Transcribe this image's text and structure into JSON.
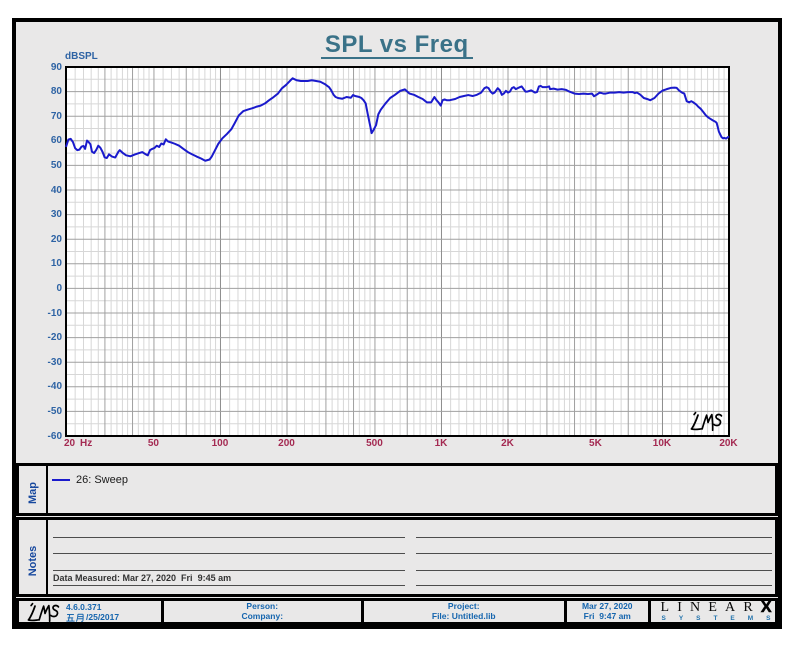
{
  "title": {
    "text": "SPL vs Freq",
    "color": "#3a7288"
  },
  "chart_data": {
    "type": "line",
    "title": "SPL vs Freq",
    "ylabel": "dBSPL",
    "xlabel": "",
    "x_unit": "Hz",
    "x_scale": "log",
    "x_range": [
      20,
      20000
    ],
    "y_range": [
      -60,
      90
    ],
    "grid": true,
    "y_ticks": [
      90,
      80,
      70,
      60,
      50,
      40,
      30,
      20,
      10,
      0,
      -10,
      -20,
      -30,
      -40,
      -50,
      -60
    ],
    "y_minor_ticks": [
      85,
      75,
      65,
      55,
      45,
      35,
      25,
      15,
      5,
      -5,
      -15,
      -25,
      -35,
      -45,
      -55
    ],
    "x_ticks": [
      {
        "value": 20,
        "label": "20"
      },
      {
        "value": 50,
        "label": "50"
      },
      {
        "value": 100,
        "label": "100"
      },
      {
        "value": 200,
        "label": "200"
      },
      {
        "value": 500,
        "label": "500"
      },
      {
        "value": 1000,
        "label": "1K"
      },
      {
        "value": 2000,
        "label": "2K"
      },
      {
        "value": 5000,
        "label": "5K"
      },
      {
        "value": 10000,
        "label": "10K"
      },
      {
        "value": 20000,
        "label": "20K"
      }
    ],
    "x_grid_major": [
      30,
      40,
      50,
      70,
      100,
      200,
      300,
      400,
      500,
      700,
      1000,
      2000,
      3000,
      4000,
      5000,
      7000,
      10000
    ],
    "x_grid_minor": [
      22,
      24,
      26,
      28,
      32,
      34,
      36,
      38,
      42.5,
      45,
      47.5,
      55,
      60,
      65,
      75,
      80,
      85,
      90,
      95,
      110,
      120,
      130,
      140,
      150,
      160,
      170,
      180,
      190,
      220,
      240,
      260,
      280,
      320,
      340,
      360,
      380,
      425,
      450,
      475,
      550,
      600,
      650,
      750,
      800,
      850,
      900,
      950,
      1100,
      1200,
      1300,
      1400,
      1500,
      1600,
      1700,
      1800,
      1900,
      2200,
      2400,
      2600,
      2800,
      3200,
      3400,
      3600,
      3800,
      4250,
      4500,
      4750,
      5500,
      6000,
      6500,
      7500,
      8000,
      8500,
      9000,
      9500,
      11000,
      12000,
      13000,
      14000,
      15000,
      16000,
      17000,
      18000,
      19000
    ],
    "series": [
      {
        "name": "26: Sweep",
        "color": "#1a1acc",
        "points": [
          [
            20,
            57.5
          ],
          [
            20.5,
            60.5
          ],
          [
            21,
            60.8
          ],
          [
            21.5,
            59.5
          ],
          [
            22,
            57
          ],
          [
            22.5,
            56.2
          ],
          [
            23,
            56.4
          ],
          [
            23.5,
            57.6
          ],
          [
            24,
            57.9
          ],
          [
            24.4,
            56.7
          ],
          [
            24.9,
            60.1
          ],
          [
            25.3,
            59.5
          ],
          [
            25.8,
            58.6
          ],
          [
            26.2,
            55.6
          ],
          [
            26.8,
            55
          ],
          [
            27.4,
            56.3
          ],
          [
            28,
            58
          ],
          [
            28.6,
            57.2
          ],
          [
            29.3,
            55.4
          ],
          [
            29.9,
            53.3
          ],
          [
            30.6,
            53
          ],
          [
            31.3,
            54.5
          ],
          [
            32.3,
            53.6
          ],
          [
            33.4,
            53.2
          ],
          [
            34.5,
            55.5
          ],
          [
            35,
            56.2
          ],
          [
            36.2,
            55
          ],
          [
            37.4,
            54.1
          ],
          [
            39.1,
            53.7
          ],
          [
            40.9,
            54.4
          ],
          [
            42.8,
            55
          ],
          [
            44.3,
            55.4
          ],
          [
            45.9,
            54.5
          ],
          [
            46.9,
            54.1
          ],
          [
            48,
            56.2
          ],
          [
            49.1,
            56.7
          ],
          [
            50.3,
            57.1
          ],
          [
            51.5,
            58
          ],
          [
            52.8,
            57.5
          ],
          [
            54,
            58.9
          ],
          [
            55.3,
            58.5
          ],
          [
            56.6,
            60.6
          ],
          [
            58,
            59.7
          ],
          [
            60,
            59.3
          ],
          [
            62.1,
            58.8
          ],
          [
            65,
            58
          ],
          [
            68,
            56.7
          ],
          [
            71.2,
            55.4
          ],
          [
            74.5,
            54.5
          ],
          [
            78,
            53.6
          ],
          [
            81.7,
            52.8
          ],
          [
            85.3,
            51.9
          ],
          [
            89.3,
            52.4
          ],
          [
            91.3,
            53.6
          ],
          [
            94.5,
            56.2
          ],
          [
            97.8,
            58.8
          ],
          [
            102,
            61
          ],
          [
            107,
            62.8
          ],
          [
            112,
            64.7
          ],
          [
            116,
            67.2
          ],
          [
            121,
            70.3
          ],
          [
            127,
            72.1
          ],
          [
            133,
            72.7
          ],
          [
            139,
            73.2
          ],
          [
            146,
            73.9
          ],
          [
            152,
            74.3
          ],
          [
            159,
            75.2
          ],
          [
            166,
            76.5
          ],
          [
            174,
            77.8
          ],
          [
            182,
            79.2
          ],
          [
            190,
            81.4
          ],
          [
            198,
            82.7
          ],
          [
            207,
            84.5
          ],
          [
            212,
            85.4
          ],
          [
            221,
            84.6
          ],
          [
            231,
            84.3
          ],
          [
            248,
            84.3
          ],
          [
            259,
            84.6
          ],
          [
            271,
            84.3
          ],
          [
            283,
            84
          ],
          [
            296,
            83.1
          ],
          [
            310,
            81.8
          ],
          [
            317,
            80.5
          ],
          [
            325,
            78.7
          ],
          [
            332,
            77.8
          ],
          [
            340,
            77.4
          ],
          [
            356,
            77.1
          ],
          [
            372,
            77.8
          ],
          [
            389,
            77.5
          ],
          [
            398,
            78.6
          ],
          [
            407,
            78.2
          ],
          [
            425,
            77.8
          ],
          [
            434,
            77.4
          ],
          [
            444,
            76.5
          ],
          [
            454,
            75.2
          ],
          [
            464,
            70.8
          ],
          [
            475,
            66.4
          ],
          [
            483,
            63.1
          ],
          [
            494,
            64.6
          ],
          [
            506,
            66.4
          ],
          [
            518,
            70.8
          ],
          [
            531,
            72.6
          ],
          [
            558,
            75.2
          ],
          [
            586,
            77.4
          ],
          [
            616,
            78.7
          ],
          [
            651,
            80.3
          ],
          [
            683,
            80.9
          ],
          [
            717,
            79.2
          ],
          [
            751,
            78.7
          ],
          [
            786,
            77.8
          ],
          [
            822,
            77
          ],
          [
            860,
            75.6
          ],
          [
            898,
            75.6
          ],
          [
            929,
            77.8
          ],
          [
            950,
            76.5
          ],
          [
            970,
            75.6
          ],
          [
            992,
            74.3
          ],
          [
            1012,
            76.5
          ],
          [
            1033,
            76.8
          ],
          [
            1055,
            76.5
          ],
          [
            1090,
            76.5
          ],
          [
            1153,
            77
          ],
          [
            1208,
            77.8
          ],
          [
            1264,
            78.2
          ],
          [
            1322,
            78.6
          ],
          [
            1383,
            78.2
          ],
          [
            1447,
            78.7
          ],
          [
            1512,
            79.6
          ],
          [
            1564,
            81.4
          ],
          [
            1599,
            81.8
          ],
          [
            1633,
            81.4
          ],
          [
            1668,
            80
          ],
          [
            1704,
            79.2
          ],
          [
            1740,
            79.6
          ],
          [
            1797,
            81.4
          ],
          [
            1838,
            80.5
          ],
          [
            1876,
            78.7
          ],
          [
            1916,
            79.2
          ],
          [
            1957,
            80.3
          ],
          [
            2000,
            79.6
          ],
          [
            2040,
            80
          ],
          [
            2083,
            81.4
          ],
          [
            2126,
            81.8
          ],
          [
            2170,
            81
          ],
          [
            2215,
            81.4
          ],
          [
            2261,
            81.8
          ],
          [
            2306,
            82.1
          ],
          [
            2353,
            81
          ],
          [
            2400,
            80
          ],
          [
            2447,
            80
          ],
          [
            2548,
            80.5
          ],
          [
            2652,
            79.6
          ],
          [
            2705,
            79.8
          ],
          [
            2760,
            82.1
          ],
          [
            2813,
            82.3
          ],
          [
            2870,
            81.8
          ],
          [
            2982,
            81.8
          ],
          [
            3070,
            82.1
          ],
          [
            3100,
            81
          ],
          [
            3220,
            81.2
          ],
          [
            3350,
            80.8
          ],
          [
            3500,
            81
          ],
          [
            3660,
            80.7
          ],
          [
            3790,
            80
          ],
          [
            4000,
            79.2
          ],
          [
            4190,
            79
          ],
          [
            4390,
            79.2
          ],
          [
            4600,
            79
          ],
          [
            4800,
            79.2
          ],
          [
            4900,
            78.1
          ],
          [
            5030,
            78.7
          ],
          [
            5200,
            79.6
          ],
          [
            5400,
            79.2
          ],
          [
            5540,
            79.2
          ],
          [
            5800,
            79.6
          ],
          [
            6080,
            79.6
          ],
          [
            6370,
            79.8
          ],
          [
            6670,
            79.6
          ],
          [
            6990,
            79.8
          ],
          [
            7320,
            79.8
          ],
          [
            7500,
            79.4
          ],
          [
            7670,
            79.6
          ],
          [
            7950,
            78.7
          ],
          [
            8230,
            77.4
          ],
          [
            8520,
            77
          ],
          [
            8800,
            76.5
          ],
          [
            9200,
            77.4
          ],
          [
            9600,
            79.2
          ],
          [
            10000,
            80.4
          ],
          [
            10450,
            81
          ],
          [
            10900,
            81.5
          ],
          [
            11350,
            81.6
          ],
          [
            11600,
            81.5
          ],
          [
            11900,
            80.4
          ],
          [
            12250,
            79.6
          ],
          [
            12550,
            79.2
          ],
          [
            12870,
            76.1
          ],
          [
            13200,
            75.6
          ],
          [
            13500,
            76.1
          ],
          [
            13800,
            75.6
          ],
          [
            14200,
            74.8
          ],
          [
            14500,
            73.9
          ],
          [
            14900,
            73
          ],
          [
            15300,
            71.7
          ],
          [
            15700,
            70.4
          ],
          [
            16100,
            69.5
          ],
          [
            16500,
            68.9
          ],
          [
            16900,
            68.3
          ],
          [
            17400,
            67.7
          ],
          [
            17600,
            67.2
          ],
          [
            17800,
            65.5
          ],
          [
            18000,
            63.7
          ],
          [
            18300,
            62.4
          ],
          [
            18500,
            61.5
          ],
          [
            18800,
            61
          ],
          [
            19000,
            61.2
          ],
          [
            19400,
            60.9
          ],
          [
            20000,
            61.8
          ]
        ]
      }
    ]
  },
  "axis_style": {
    "y_label_color": "#2e63a4",
    "x_label_color": "#a42a52"
  },
  "plot_logo_text": "LMS",
  "map_panel": {
    "label": "Map",
    "legend": [
      {
        "name": "26: Sweep",
        "color": "#1a1acc"
      }
    ]
  },
  "notes_panel": {
    "label": "Notes",
    "data_measured": "Data Measured: Mar 27, 2020  Fri  9:45 am"
  },
  "footer": {
    "logo_text": "LMS",
    "version": "4.6.0.371",
    "version_date": "五月/25/2017",
    "person_label": "Person:",
    "company_label": "Company:",
    "project_label": "Project:",
    "file_label": "File: Untitled.lib",
    "date_line1": "Mar 27, 2020",
    "date_line2": "Fri  9:47 am",
    "brand_main": "LINEAR",
    "brand_x": "X",
    "brand_sub": "SYSTEMS"
  }
}
